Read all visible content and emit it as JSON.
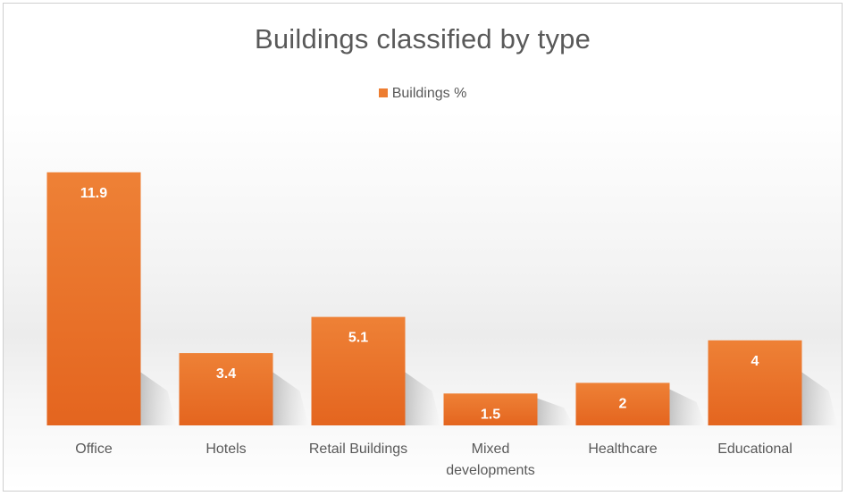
{
  "chart_data": {
    "type": "bar",
    "title": "Buildings classified by type",
    "categories": [
      "Office",
      "Hotels",
      "Retail Buildings",
      "Mixed developments",
      "Healthcare",
      "Educational"
    ],
    "series": [
      {
        "name": "Buildings %",
        "values": [
          11.9,
          3.4,
          5.1,
          1.5,
          2,
          4
        ],
        "color": "#ED7D31"
      }
    ],
    "data_labels": [
      "11.9",
      "3.4",
      "5.1",
      "1.5",
      "2",
      "4"
    ],
    "ylim": [
      0,
      14
    ],
    "grid": false,
    "legend_position": "top"
  }
}
